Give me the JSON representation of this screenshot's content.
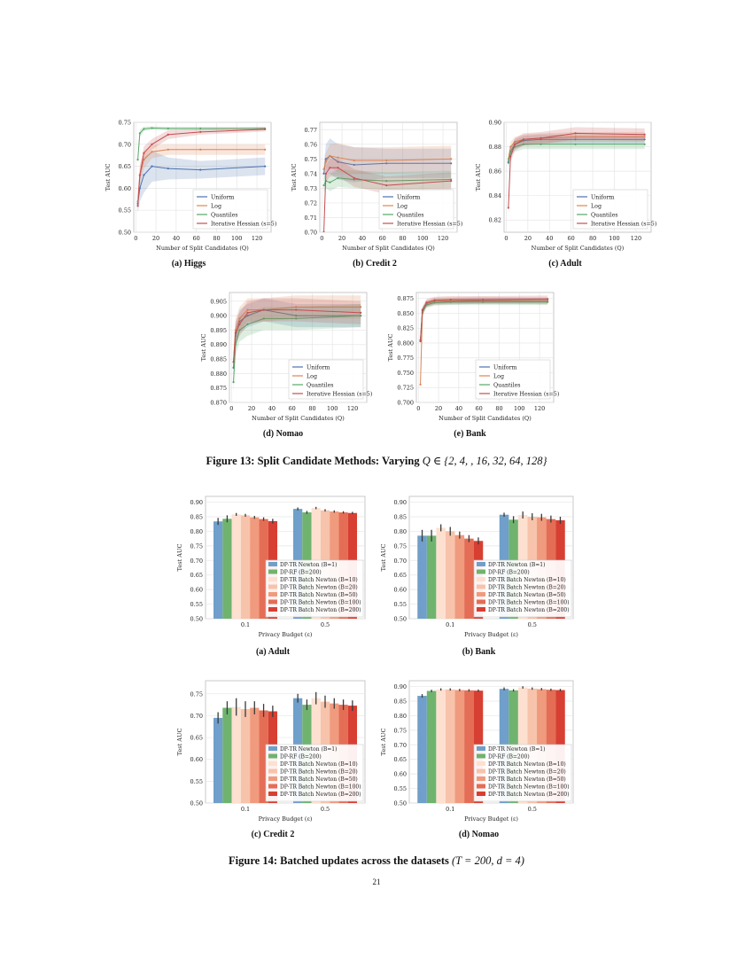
{
  "figure13": {
    "caption_prefix": "Figure 13: Split Candidate Methods: Varying ",
    "caption_math": "Q ∈ {2, 4, , 16, 32, 64, 128}",
    "legend": [
      "Uniform",
      "Log",
      "Quantiles",
      "Iterative Hessian (s=5)"
    ],
    "colors": [
      "#4c72b0",
      "#dd8452",
      "#55a868",
      "#c44e52"
    ]
  },
  "figure14": {
    "caption_prefix": "Figure 14: Batched updates across the datasets ",
    "caption_math": "(T = 200, d = 4)",
    "legend": [
      "DP-TR Newton  (B=1)",
      "DP-RF  (B=200)",
      "DP-TR Batch Newton  (B=10)",
      "DP-TR Batch Newton  (B=20)",
      "DP-TR Batch Newton  (B=50)",
      "DP-TR Batch Newton  (B=100)",
      "DP-TR Batch Newton  (B=200)"
    ],
    "colors": [
      "#6f9fca",
      "#6fb36f",
      "#fde0d0",
      "#f7c3ab",
      "#f09b7e",
      "#e46d56",
      "#d73f33"
    ]
  },
  "page_number": "21",
  "chart_data": [
    {
      "id": "higgs",
      "type": "line",
      "panel_caption": "(a) Higgs",
      "xlabel": "Number of Split Candidates (Q)",
      "ylabel": "Test AUC",
      "xlim": [
        -2,
        134
      ],
      "ylim": [
        0.5,
        0.75
      ],
      "x_ticks": [
        0,
        20,
        40,
        60,
        80,
        100,
        120
      ],
      "y_ticks": [
        0.5,
        0.55,
        0.6,
        0.65,
        0.7,
        0.75
      ],
      "x": [
        2,
        4,
        8,
        16,
        32,
        64,
        128
      ],
      "series": [
        {
          "name": "Uniform",
          "values": [
            0.565,
            0.6,
            0.63,
            0.65,
            0.645,
            0.642,
            0.65
          ],
          "band": [
            0.02,
            0.03,
            0.04,
            0.035,
            0.025,
            0.02,
            0.02
          ]
        },
        {
          "name": "Log",
          "values": [
            0.57,
            0.63,
            0.665,
            0.683,
            0.688,
            0.688,
            0.688
          ],
          "band": [
            0.02,
            0.025,
            0.02,
            0.015,
            0.012,
            0.012,
            0.012
          ]
        },
        {
          "name": "Quantiles",
          "values": [
            0.665,
            0.725,
            0.735,
            0.737,
            0.736,
            0.736,
            0.736
          ],
          "band": [
            0.01,
            0.008,
            0.005,
            0.004,
            0.004,
            0.004,
            0.004
          ]
        },
        {
          "name": "Iterative Hessian (s=5)",
          "values": [
            0.56,
            0.63,
            0.68,
            0.7,
            0.722,
            0.728,
            0.734
          ],
          "band": [
            0.015,
            0.015,
            0.015,
            0.012,
            0.01,
            0.006,
            0.005
          ]
        }
      ]
    },
    {
      "id": "credit2",
      "type": "line",
      "panel_caption": "(b) Credit 2",
      "xlabel": "Number of Split Candidates (Q)",
      "ylabel": "Test AUC",
      "xlim": [
        -2,
        134
      ],
      "ylim": [
        0.7,
        0.775
      ],
      "x_ticks": [
        0,
        20,
        40,
        60,
        80,
        100,
        120
      ],
      "y_ticks": [
        0.7,
        0.71,
        0.72,
        0.73,
        0.74,
        0.75,
        0.76,
        0.77
      ],
      "x": [
        2,
        4,
        8,
        16,
        32,
        64,
        128
      ],
      "series": [
        {
          "name": "Uniform",
          "values": [
            0.74,
            0.75,
            0.752,
            0.748,
            0.746,
            0.747,
            0.747
          ],
          "band": [
            0.006,
            0.01,
            0.012,
            0.012,
            0.012,
            0.01,
            0.01
          ]
        },
        {
          "name": "Log",
          "values": [
            0.743,
            0.748,
            0.752,
            0.751,
            0.749,
            0.749,
            0.75
          ],
          "band": [
            0.005,
            0.006,
            0.008,
            0.01,
            0.009,
            0.009,
            0.009
          ]
        },
        {
          "name": "Quantiles",
          "values": [
            0.732,
            0.735,
            0.734,
            0.737,
            0.736,
            0.735,
            0.736
          ],
          "band": [
            0.005,
            0.005,
            0.006,
            0.006,
            0.006,
            0.006,
            0.006
          ]
        },
        {
          "name": "Iterative Hessian (s=5)",
          "values": [
            0.7,
            0.74,
            0.744,
            0.744,
            0.737,
            0.732,
            0.735
          ],
          "band": [
            0.004,
            0.006,
            0.006,
            0.006,
            0.006,
            0.006,
            0.006
          ]
        }
      ]
    },
    {
      "id": "adult",
      "type": "line",
      "panel_caption": "(c) Adult",
      "xlabel": "Number of Split Candidates (Q)",
      "ylabel": "Test AUC",
      "xlim": [
        -2,
        134
      ],
      "ylim": [
        0.81,
        0.9
      ],
      "x_ticks": [
        0,
        20,
        40,
        60,
        80,
        100,
        120
      ],
      "y_ticks": [
        0.82,
        0.84,
        0.86,
        0.88,
        0.9
      ],
      "x": [
        2,
        4,
        8,
        16,
        32,
        64,
        128
      ],
      "series": [
        {
          "name": "Uniform",
          "values": [
            0.867,
            0.876,
            0.882,
            0.885,
            0.886,
            0.886,
            0.886
          ],
          "band": [
            0.004,
            0.004,
            0.004,
            0.004,
            0.004,
            0.004,
            0.004
          ]
        },
        {
          "name": "Log",
          "values": [
            0.87,
            0.88,
            0.884,
            0.886,
            0.887,
            0.888,
            0.888
          ],
          "band": [
            0.004,
            0.004,
            0.004,
            0.004,
            0.004,
            0.004,
            0.004
          ]
        },
        {
          "name": "Quantiles",
          "values": [
            0.868,
            0.876,
            0.88,
            0.882,
            0.882,
            0.882,
            0.882
          ],
          "band": [
            0.004,
            0.004,
            0.004,
            0.004,
            0.004,
            0.004,
            0.004
          ]
        },
        {
          "name": "Iterative Hessian (s=5)",
          "values": [
            0.83,
            0.872,
            0.882,
            0.886,
            0.887,
            0.891,
            0.89
          ],
          "band": [
            0.004,
            0.005,
            0.005,
            0.005,
            0.005,
            0.005,
            0.005
          ]
        }
      ]
    },
    {
      "id": "nomao",
      "type": "line",
      "panel_caption": "(d) Nomao",
      "xlabel": "Number of Split Candidates (Q)",
      "ylabel": "Test AUC",
      "xlim": [
        -2,
        134
      ],
      "ylim": [
        0.87,
        0.908
      ],
      "x_ticks": [
        0,
        20,
        40,
        60,
        80,
        100,
        120
      ],
      "y_ticks": [
        0.87,
        0.875,
        0.88,
        0.885,
        0.89,
        0.895,
        0.9,
        0.905
      ],
      "x": [
        2,
        4,
        8,
        16,
        32,
        64,
        128
      ],
      "series": [
        {
          "name": "Uniform",
          "values": [
            0.882,
            0.893,
            0.898,
            0.9,
            0.902,
            0.9,
            0.9
          ],
          "band": [
            0.003,
            0.004,
            0.004,
            0.004,
            0.004,
            0.004,
            0.004
          ]
        },
        {
          "name": "Log",
          "values": [
            0.884,
            0.895,
            0.899,
            0.902,
            0.902,
            0.903,
            0.903
          ],
          "band": [
            0.003,
            0.004,
            0.004,
            0.004,
            0.004,
            0.004,
            0.004
          ]
        },
        {
          "name": "Quantiles",
          "values": [
            0.877,
            0.89,
            0.895,
            0.897,
            0.899,
            0.899,
            0.9
          ],
          "band": [
            0.003,
            0.004,
            0.004,
            0.004,
            0.004,
            0.004,
            0.004
          ]
        },
        {
          "name": "Iterative Hessian (s=5)",
          "values": [
            0.884,
            0.894,
            0.897,
            0.901,
            0.902,
            0.902,
            0.901
          ],
          "band": [
            0.003,
            0.004,
            0.004,
            0.004,
            0.004,
            0.004,
            0.004
          ]
        }
      ]
    },
    {
      "id": "bank",
      "type": "line",
      "panel_caption": "(e) Bank",
      "xlabel": "Number of Split Candidates (Q)",
      "ylabel": "Test AUC",
      "xlim": [
        -2,
        134
      ],
      "ylim": [
        0.7,
        0.885
      ],
      "x_ticks": [
        0,
        20,
        40,
        60,
        80,
        100,
        120
      ],
      "y_ticks": [
        0.7,
        0.725,
        0.75,
        0.775,
        0.8,
        0.825,
        0.85,
        0.875
      ],
      "x": [
        2,
        4,
        8,
        16,
        32,
        64,
        128
      ],
      "series": [
        {
          "name": "Uniform",
          "values": [
            0.805,
            0.855,
            0.866,
            0.87,
            0.87,
            0.871,
            0.871
          ],
          "band": [
            0.004,
            0.005,
            0.005,
            0.005,
            0.005,
            0.005,
            0.005
          ]
        },
        {
          "name": "Log",
          "values": [
            0.73,
            0.85,
            0.866,
            0.87,
            0.871,
            0.872,
            0.871
          ],
          "band": [
            0.004,
            0.006,
            0.006,
            0.006,
            0.006,
            0.006,
            0.006
          ]
        },
        {
          "name": "Quantiles",
          "values": [
            0.803,
            0.852,
            0.864,
            0.868,
            0.869,
            0.869,
            0.869
          ],
          "band": [
            0.004,
            0.005,
            0.005,
            0.005,
            0.005,
            0.005,
            0.005
          ]
        },
        {
          "name": "Iterative Hessian (s=5)",
          "values": [
            0.803,
            0.856,
            0.868,
            0.872,
            0.873,
            0.873,
            0.874
          ],
          "band": [
            0.004,
            0.006,
            0.006,
            0.006,
            0.006,
            0.006,
            0.006
          ]
        }
      ]
    },
    {
      "id": "bar-adult",
      "type": "bar",
      "panel_caption": "(a) Adult",
      "xlabel": "Privacy Budget (ε)",
      "ylabel": "Test AUC",
      "ylim": [
        0.5,
        0.92
      ],
      "y_ticks": [
        0.5,
        0.55,
        0.6,
        0.65,
        0.7,
        0.75,
        0.8,
        0.85,
        0.9
      ],
      "categories": [
        "0.1",
        "0.5"
      ],
      "values": [
        [
          0.834,
          0.843,
          0.858,
          0.855,
          0.848,
          0.842,
          0.835
        ],
        [
          0.877,
          0.865,
          0.88,
          0.872,
          0.868,
          0.865,
          0.863
        ]
      ],
      "errors": [
        [
          0.012,
          0.012,
          0.005,
          0.005,
          0.005,
          0.006,
          0.008
        ],
        [
          0.005,
          0.005,
          0.004,
          0.004,
          0.004,
          0.004,
          0.004
        ]
      ]
    },
    {
      "id": "bar-bank",
      "type": "bar",
      "panel_caption": "(b) Bank",
      "xlabel": "Privacy Budget (ε)",
      "ylabel": "Test AUC",
      "ylim": [
        0.5,
        0.92
      ],
      "y_ticks": [
        0.5,
        0.55,
        0.6,
        0.65,
        0.7,
        0.75,
        0.8,
        0.85,
        0.9
      ],
      "categories": [
        "0.1",
        "0.5"
      ],
      "values": [
        [
          0.785,
          0.785,
          0.812,
          0.8,
          0.787,
          0.775,
          0.767
        ],
        [
          0.857,
          0.84,
          0.856,
          0.85,
          0.848,
          0.842,
          0.838
        ]
      ],
      "errors": [
        [
          0.02,
          0.02,
          0.012,
          0.015,
          0.012,
          0.012,
          0.012
        ],
        [
          0.007,
          0.012,
          0.012,
          0.012,
          0.012,
          0.012,
          0.012
        ]
      ]
    },
    {
      "id": "bar-credit2",
      "type": "bar",
      "panel_caption": "(c) Credit 2",
      "xlabel": "Privacy Budget (ε)",
      "ylabel": "Test AUC",
      "ylim": [
        0.5,
        0.78
      ],
      "y_ticks": [
        0.5,
        0.55,
        0.6,
        0.65,
        0.7,
        0.75
      ],
      "categories": [
        "0.1",
        "0.5"
      ],
      "values": [
        [
          0.695,
          0.718,
          0.72,
          0.715,
          0.718,
          0.712,
          0.71
        ],
        [
          0.74,
          0.725,
          0.74,
          0.732,
          0.728,
          0.725,
          0.723
        ]
      ],
      "errors": [
        [
          0.013,
          0.015,
          0.02,
          0.018,
          0.015,
          0.015,
          0.013
        ],
        [
          0.01,
          0.012,
          0.014,
          0.014,
          0.012,
          0.012,
          0.012
        ]
      ]
    },
    {
      "id": "bar-nomao",
      "type": "bar",
      "panel_caption": "(d) Nomao",
      "xlabel": "Privacy Budget (ε)",
      "ylabel": "Test AUC",
      "ylim": [
        0.5,
        0.92
      ],
      "y_ticks": [
        0.5,
        0.55,
        0.6,
        0.65,
        0.7,
        0.75,
        0.8,
        0.85,
        0.9
      ],
      "categories": [
        "0.1",
        "0.5"
      ],
      "values": [
        [
          0.868,
          0.885,
          0.89,
          0.89,
          0.888,
          0.887,
          0.886
        ],
        [
          0.892,
          0.887,
          0.897,
          0.893,
          0.891,
          0.889,
          0.888
        ]
      ],
      "errors": [
        [
          0.006,
          0.004,
          0.004,
          0.004,
          0.004,
          0.004,
          0.004
        ],
        [
          0.005,
          0.004,
          0.004,
          0.004,
          0.004,
          0.004,
          0.004
        ]
      ]
    }
  ]
}
